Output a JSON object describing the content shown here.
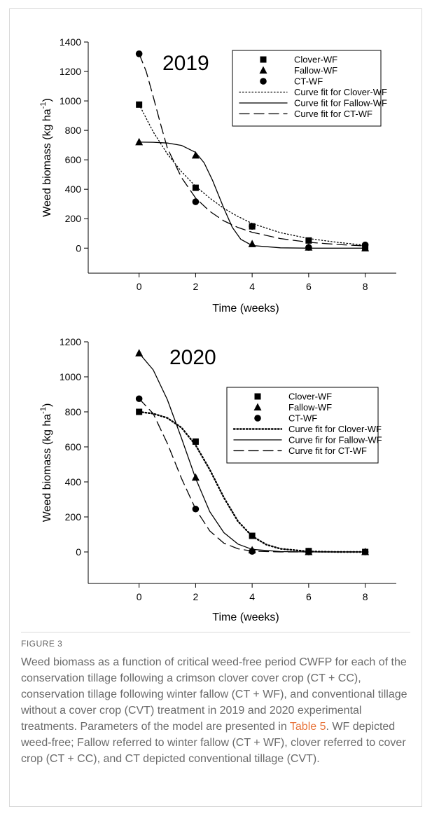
{
  "figure": {
    "label": "FIGURE 3",
    "caption_before_link": "Weed biomass as a function of critical weed-free period CWFP for each of the conservation tillage following a crimson clover cover crop (CT + CC), conservation tillage following winter fallow (CT + WF), and conventional tillage without a cover crop (CVT) treatment in 2019 and 2020 experimental treatments. Parameters of the model are presented in ",
    "caption_link": "Table 5",
    "caption_after_link": ". WF depicted weed-free; Fallow referred to winter fallow (CT + WF), clover referred to cover crop (CT + CC), and CT depicted conventional tillage (CVT).",
    "link_color": "#e8743b"
  },
  "chart_data": [
    {
      "type": "scatter",
      "title": "2019",
      "xlabel": "Time (weeks)",
      "ylabel": "Weed biomass (kg ha",
      "ylabel_sup": "-1",
      "ylabel_close": ")",
      "xlim": [
        -1.8,
        9.1
      ],
      "ylim": [
        -170,
        1400
      ],
      "xticks": [
        0,
        2,
        4,
        6,
        8
      ],
      "yticks": [
        0,
        200,
        400,
        600,
        800,
        1000,
        1200,
        1400
      ],
      "grid": false,
      "legend_position": "top-right",
      "series": [
        {
          "name": "Clover-WF",
          "marker": "square",
          "x": [
            0,
            2,
            4,
            6,
            8
          ],
          "y": [
            975,
            410,
            148,
            52,
            0
          ]
        },
        {
          "name": "Fallow-WF",
          "marker": "triangle",
          "x": [
            0,
            2,
            4,
            6,
            8
          ],
          "y": [
            720,
            630,
            28,
            5,
            0
          ]
        },
        {
          "name": "CT-WF",
          "marker": "circle",
          "x": [
            0,
            2,
            4,
            6,
            8
          ],
          "y": [
            1320,
            315,
            148,
            5,
            22
          ]
        }
      ],
      "fits": [
        {
          "name": "Curve fit for Clover-WF",
          "dash": "dotted",
          "x": [
            0,
            0.5,
            1,
            1.5,
            2,
            2.5,
            3,
            3.5,
            4,
            5,
            6,
            7,
            8
          ],
          "y": [
            975,
            790,
            640,
            520,
            420,
            340,
            270,
            215,
            168,
            105,
            65,
            40,
            20
          ]
        },
        {
          "name": "Curve fit for Fallow-WF",
          "dash": "solid",
          "x": [
            0,
            0.5,
            1,
            1.5,
            2,
            2.3,
            2.6,
            3,
            3.3,
            3.6,
            4,
            5,
            6,
            8
          ],
          "y": [
            720,
            719,
            714,
            698,
            650,
            580,
            460,
            270,
            140,
            60,
            18,
            2,
            0,
            0
          ]
        },
        {
          "name": "Curve fit for CT-WF",
          "dash": "dashed",
          "x": [
            0,
            0.25,
            0.5,
            0.75,
            1,
            1.5,
            2,
            2.5,
            3,
            3.5,
            4,
            5,
            6,
            7,
            8
          ],
          "y": [
            1320,
            1200,
            1030,
            850,
            680,
            480,
            340,
            250,
            185,
            140,
            108,
            65,
            40,
            25,
            15
          ]
        }
      ]
    },
    {
      "type": "scatter",
      "title": "2020",
      "xlabel": "Time (weeks)",
      "ylabel": "Weed biomass (kg ha",
      "ylabel_sup": "-1",
      "ylabel_close": ")",
      "xlim": [
        -1.8,
        9.1
      ],
      "ylim": [
        -180,
        1200
      ],
      "xticks": [
        0,
        2,
        4,
        6,
        8
      ],
      "yticks": [
        0,
        200,
        400,
        600,
        800,
        1000,
        1200
      ],
      "grid": false,
      "legend_position": "top-right",
      "series": [
        {
          "name": "Clover-WF",
          "marker": "square",
          "x": [
            0,
            2,
            4,
            6,
            8
          ],
          "y": [
            800,
            630,
            92,
            5,
            0
          ]
        },
        {
          "name": "Fallow-WF",
          "marker": "triangle",
          "x": [
            0,
            2,
            4,
            6,
            8
          ],
          "y": [
            1135,
            425,
            10,
            0,
            0
          ]
        },
        {
          "name": "CT-WF",
          "marker": "circle",
          "x": [
            0,
            2,
            4,
            6,
            8
          ],
          "y": [
            875,
            245,
            3,
            0,
            0
          ]
        }
      ],
      "fits": [
        {
          "name": "Curve fit for Clover-WF",
          "dash": "dotted",
          "x": [
            0,
            0.5,
            1,
            1.5,
            2,
            2.5,
            3,
            3.5,
            4,
            4.5,
            5,
            6,
            7,
            8
          ],
          "y": [
            800,
            790,
            765,
            710,
            610,
            470,
            310,
            175,
            90,
            42,
            18,
            3,
            0,
            0
          ]
        },
        {
          "name": "Curve fir for Fallow-WF",
          "dash": "solid",
          "x": [
            0,
            0.5,
            1,
            1.5,
            2,
            2.5,
            3,
            3.5,
            4,
            5,
            6,
            8
          ],
          "y": [
            1135,
            1040,
            870,
            650,
            420,
            230,
            110,
            45,
            15,
            2,
            0,
            0
          ]
        },
        {
          "name": "Curve fit for CT-WF",
          "dash": "dashed",
          "x": [
            0,
            0.5,
            1,
            1.5,
            2,
            2.5,
            3,
            3.5,
            4,
            5,
            6,
            8
          ],
          "y": [
            875,
            790,
            620,
            420,
            245,
            120,
            50,
            18,
            5,
            0,
            0,
            0
          ]
        }
      ]
    }
  ]
}
